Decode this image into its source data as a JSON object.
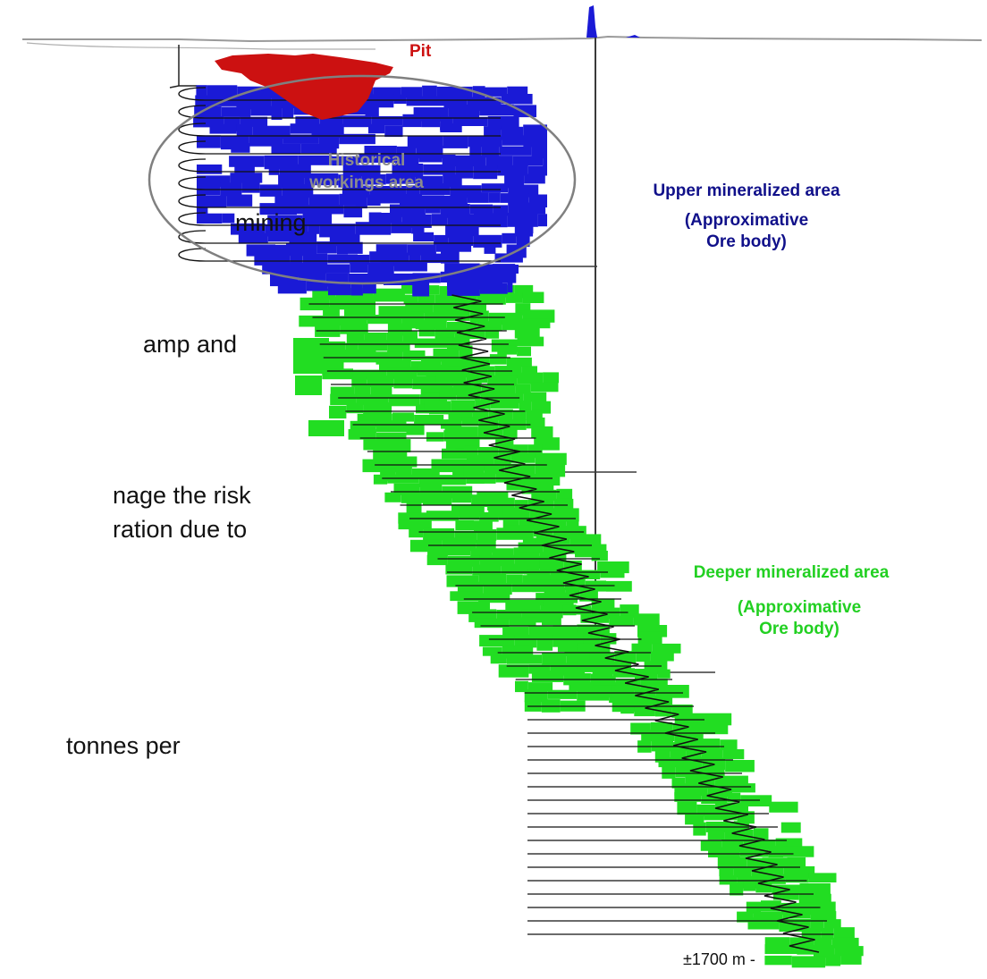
{
  "text_fragments": [
    "mining",
    "amp and",
    "nage the risk",
    "ration due to",
    "tonnes per"
  ],
  "labels": {
    "pit": "Pit",
    "historical": [
      "Historical",
      "workings area"
    ],
    "upper": [
      "Upper mineralized area",
      "(Approximative",
      "Ore body)"
    ],
    "deeper": [
      "Deeper mineralized area",
      "(Approximative",
      "Ore body)"
    ],
    "depth": "±1700 m -"
  },
  "colors": {
    "pit": "#cc1111",
    "upper_zone": "#1a1ad6",
    "deeper_zone": "#22dd22",
    "upper_label": "#10108a",
    "deeper_label": "#22d022",
    "historical_label": "#8c8c8c",
    "ellipse": "#808080",
    "drill_line": "#111111"
  }
}
